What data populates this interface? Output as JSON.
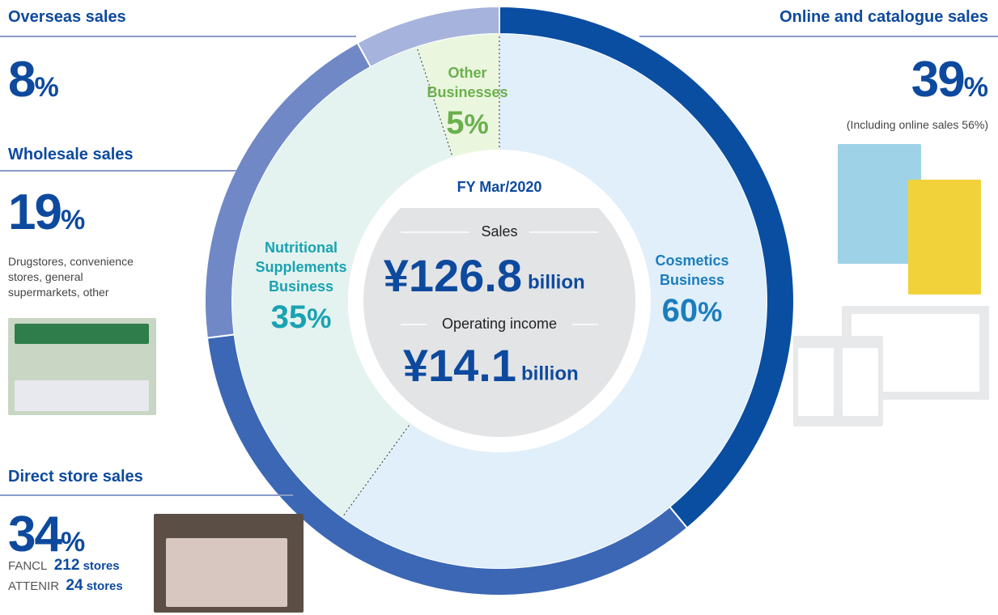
{
  "chart_data": {
    "type": "donut",
    "unit": "%",
    "channels": [
      {
        "name": "Online and catalogue sales",
        "value": 39,
        "color": "#0a4ea2",
        "note": "(Including online sales 56%)"
      },
      {
        "name": "Direct store sales",
        "value": 34,
        "color": "#3b67b4",
        "stores": [
          {
            "brand": "FANCL",
            "count": 212,
            "unit": "stores"
          },
          {
            "brand": "ATTENIR",
            "count": 24,
            "unit": "stores"
          }
        ]
      },
      {
        "name": "Wholesale sales",
        "value": 19,
        "color": "#7088c6",
        "note": "Drugstores, convenience stores, general supermarkets, other"
      },
      {
        "name": "Overseas sales",
        "value": 8,
        "color": "#a6b3dc"
      }
    ],
    "businesses": [
      {
        "name": "Cosmetics Business",
        "value": 60,
        "color": "#e0effa",
        "label_color": "#1c7dbd"
      },
      {
        "name": "Nutritional Supplements Business",
        "value": 35,
        "color": "#e4f3ef",
        "label_color": "#19a2b2"
      },
      {
        "name": "Other Businesses",
        "value": 5,
        "color": "#ebf6df",
        "label_color": "#6ab04c"
      }
    ],
    "center": {
      "period": "FY Mar/2020",
      "sales_label": "Sales",
      "sales_value": "¥126.8",
      "sales_unit": "billion",
      "income_label": "Operating income",
      "income_value": "¥14.1",
      "income_unit": "billion"
    }
  }
}
